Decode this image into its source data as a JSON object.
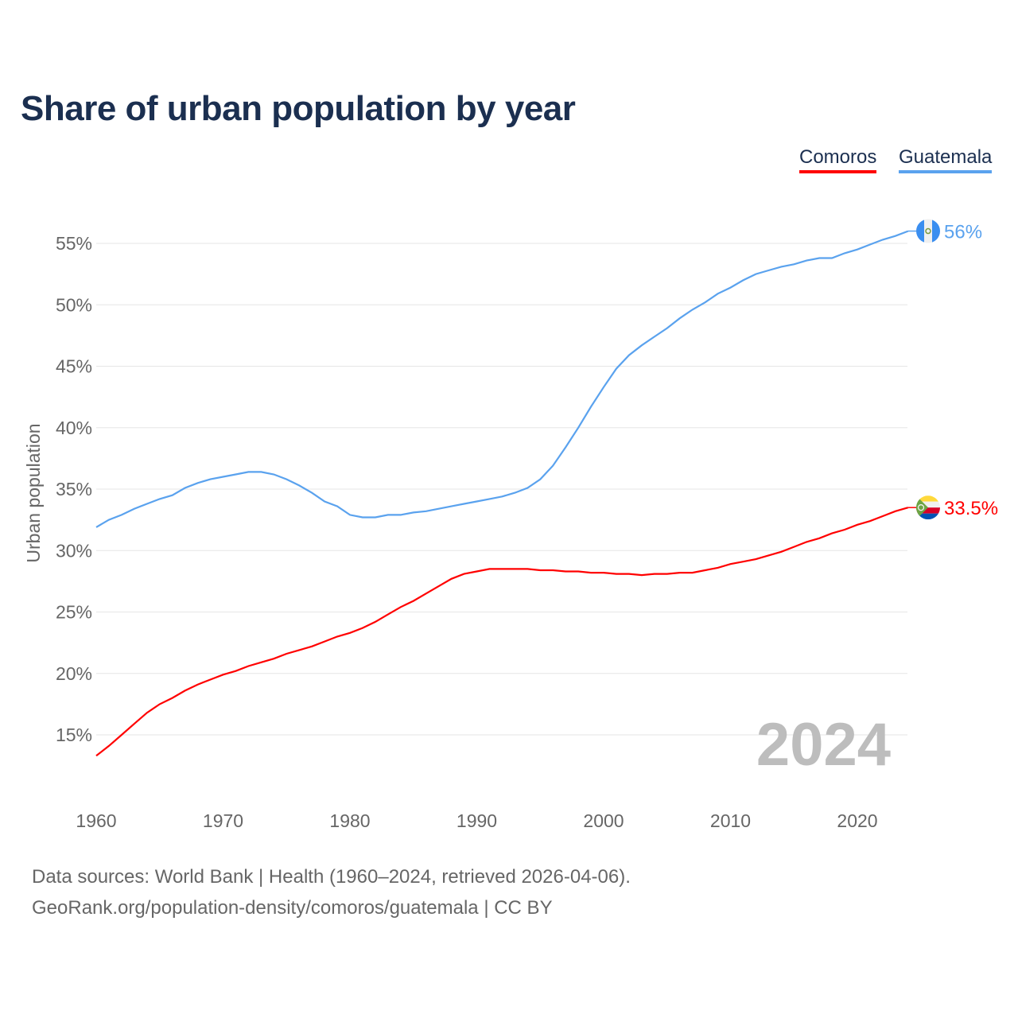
{
  "title": "Share of urban population by year",
  "legend": [
    {
      "name": "Comoros",
      "color": "#ff0000"
    },
    {
      "name": "Guatemala",
      "color": "#5aa2ee"
    }
  ],
  "footer": {
    "source": "Data sources: World Bank | Health (1960–2024, retrieved 2026-04-06).",
    "credit": "GeoRank.org/population-density/comoros/guatemala | CC BY"
  },
  "chart_data": {
    "type": "line",
    "title": "Share of urban population by year",
    "xlabel": "",
    "ylabel": "Urban population",
    "xlim": [
      1960,
      2024
    ],
    "ylim": [
      11,
      58
    ],
    "xticks": [
      1960,
      1970,
      1980,
      1990,
      2000,
      2010,
      2020
    ],
    "yticks": [
      15,
      20,
      25,
      30,
      35,
      40,
      45,
      50,
      55
    ],
    "ytick_labels": [
      "15%",
      "20%",
      "25%",
      "30%",
      "35%",
      "40%",
      "45%",
      "50%",
      "55%"
    ],
    "grid": true,
    "legend_position": "top-right",
    "annotation": "2024",
    "x_start": 1960,
    "series": [
      {
        "name": "Comoros",
        "color": "#ff0000",
        "end_label": "33.5%",
        "flag": "comoros-flag",
        "values": [
          13.3,
          14.1,
          15.0,
          15.9,
          16.8,
          17.5,
          18.0,
          18.6,
          19.1,
          19.5,
          19.9,
          20.2,
          20.6,
          20.9,
          21.2,
          21.6,
          21.9,
          22.2,
          22.6,
          23.0,
          23.3,
          23.7,
          24.2,
          24.8,
          25.4,
          25.9,
          26.5,
          27.1,
          27.7,
          28.1,
          28.3,
          28.5,
          28.5,
          28.5,
          28.5,
          28.4,
          28.4,
          28.3,
          28.3,
          28.2,
          28.2,
          28.1,
          28.1,
          28.0,
          28.1,
          28.1,
          28.2,
          28.2,
          28.4,
          28.6,
          28.9,
          29.1,
          29.3,
          29.6,
          29.9,
          30.3,
          30.7,
          31.0,
          31.4,
          31.7,
          32.1,
          32.4,
          32.8,
          33.2,
          33.5
        ]
      },
      {
        "name": "Guatemala",
        "color": "#5aa2ee",
        "end_label": "56%",
        "flag": "guatemala-flag",
        "values": [
          31.9,
          32.5,
          32.9,
          33.4,
          33.8,
          34.2,
          34.5,
          35.1,
          35.5,
          35.8,
          36.0,
          36.2,
          36.4,
          36.4,
          36.2,
          35.8,
          35.3,
          34.7,
          34.0,
          33.6,
          32.9,
          32.7,
          32.7,
          32.9,
          32.9,
          33.1,
          33.2,
          33.4,
          33.6,
          33.8,
          34.0,
          34.2,
          34.4,
          34.7,
          35.1,
          35.8,
          36.9,
          38.4,
          40.0,
          41.7,
          43.3,
          44.8,
          45.9,
          46.7,
          47.4,
          48.1,
          48.9,
          49.6,
          50.2,
          50.9,
          51.4,
          52.0,
          52.5,
          52.8,
          53.1,
          53.3,
          53.6,
          53.8,
          53.8,
          54.2,
          54.5,
          54.9,
          55.3,
          55.6,
          56.0
        ]
      }
    ]
  }
}
